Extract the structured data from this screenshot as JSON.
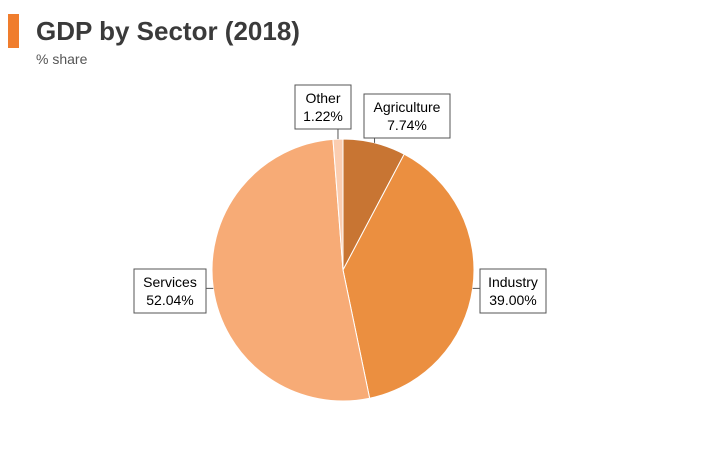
{
  "header": {
    "title": "GDP by Sector (2018)",
    "subtitle": "% share",
    "accent_color": "#f07d2d"
  },
  "chart_data": {
    "type": "pie",
    "title": "GDP by Sector (2018)",
    "subtitle": "% share",
    "start": "12 o'clock",
    "direction": "clockwise",
    "slices": [
      {
        "label": "Agriculture",
        "value": 7.74,
        "value_label": "7.74%",
        "color": "#c87533",
        "callout": "top-right"
      },
      {
        "label": "Industry",
        "value": 39.0,
        "value_label": "39.00%",
        "color": "#eb8f40",
        "callout": "right"
      },
      {
        "label": "Services",
        "value": 52.04,
        "value_label": "52.04%",
        "color": "#f7ab76",
        "callout": "left"
      },
      {
        "label": "Other",
        "value": 1.22,
        "value_label": "1.22%",
        "color": "#fbcdb0",
        "callout": "top"
      }
    ]
  }
}
